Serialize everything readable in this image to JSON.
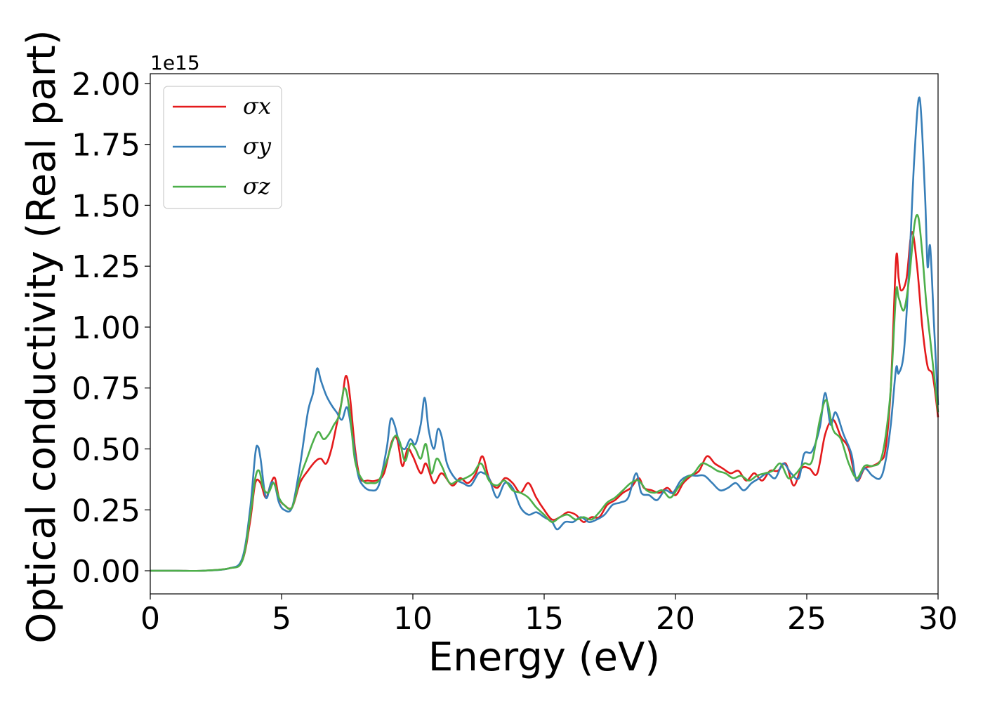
{
  "chart_data": {
    "type": "line",
    "xlabel": "Energy (eV)",
    "ylabel": "Optical conductivity (Real part)",
    "offset_text": "1e15",
    "xlim": [
      0,
      30
    ],
    "ylim": [
      -0.095,
      2.04
    ],
    "xticks": [
      "0",
      "5",
      "10",
      "15",
      "20",
      "25",
      "30"
    ],
    "yticks": [
      "0.00",
      "0.25",
      "0.50",
      "0.75",
      "1.00",
      "1.25",
      "1.50",
      "1.75",
      "2.00"
    ],
    "grid": false,
    "legend": {
      "position": "top-left"
    },
    "series": [
      {
        "name": "σx",
        "color": "#e41a1c",
        "x": [
          0,
          1,
          2,
          3,
          3.5,
          3.8,
          4.0,
          4.2,
          4.4,
          4.6,
          4.75,
          4.9,
          5.1,
          5.4,
          5.7,
          6.0,
          6.3,
          6.5,
          6.7,
          6.9,
          7.1,
          7.3,
          7.45,
          7.6,
          7.8,
          8.0,
          8.3,
          8.6,
          8.9,
          9.2,
          9.4,
          9.6,
          9.8,
          10.0,
          10.3,
          10.5,
          10.8,
          11.1,
          11.5,
          11.8,
          12.1,
          12.4,
          12.65,
          12.9,
          13.2,
          13.5,
          13.8,
          14.1,
          14.4,
          14.7,
          15.0,
          15.3,
          15.6,
          15.9,
          16.2,
          16.5,
          16.8,
          17.1,
          17.4,
          17.7,
          18.0,
          18.3,
          18.6,
          18.8,
          19.1,
          19.4,
          19.7,
          20.0,
          20.3,
          20.6,
          20.9,
          21.2,
          21.5,
          21.8,
          22.1,
          22.4,
          22.7,
          23.0,
          23.3,
          23.6,
          23.9,
          24.2,
          24.5,
          24.8,
          25.1,
          25.4,
          25.7,
          26.0,
          26.3,
          26.6,
          26.9,
          27.2,
          27.5,
          27.8,
          28.0,
          28.2,
          28.4,
          28.5,
          28.6,
          28.8,
          29.0,
          29.2,
          29.4,
          29.6,
          29.8,
          30.0
        ],
        "values": [
          0.0,
          0.0,
          0.0,
          0.01,
          0.04,
          0.2,
          0.36,
          0.36,
          0.3,
          0.36,
          0.38,
          0.3,
          0.27,
          0.26,
          0.36,
          0.41,
          0.45,
          0.46,
          0.44,
          0.5,
          0.6,
          0.7,
          0.8,
          0.72,
          0.5,
          0.38,
          0.37,
          0.37,
          0.4,
          0.53,
          0.54,
          0.43,
          0.5,
          0.47,
          0.4,
          0.44,
          0.36,
          0.4,
          0.35,
          0.38,
          0.36,
          0.4,
          0.47,
          0.38,
          0.34,
          0.38,
          0.36,
          0.32,
          0.36,
          0.3,
          0.25,
          0.21,
          0.22,
          0.24,
          0.23,
          0.2,
          0.22,
          0.22,
          0.27,
          0.29,
          0.32,
          0.34,
          0.38,
          0.34,
          0.33,
          0.32,
          0.34,
          0.31,
          0.36,
          0.39,
          0.41,
          0.47,
          0.44,
          0.42,
          0.4,
          0.41,
          0.37,
          0.4,
          0.37,
          0.41,
          0.41,
          0.44,
          0.35,
          0.42,
          0.42,
          0.4,
          0.56,
          0.62,
          0.55,
          0.5,
          0.37,
          0.42,
          0.43,
          0.45,
          0.5,
          0.75,
          1.28,
          1.2,
          1.15,
          1.2,
          1.39,
          1.25,
          1.0,
          0.84,
          0.8,
          0.63
        ]
      },
      {
        "name": "σy",
        "color": "#377eb8",
        "x": [
          0,
          1,
          2,
          3,
          3.5,
          3.8,
          4.0,
          4.1,
          4.2,
          4.4,
          4.6,
          4.75,
          4.9,
          5.1,
          5.4,
          5.7,
          6.0,
          6.2,
          6.35,
          6.5,
          6.7,
          6.9,
          7.1,
          7.3,
          7.5,
          7.7,
          7.9,
          8.1,
          8.4,
          8.7,
          9.0,
          9.15,
          9.3,
          9.5,
          9.7,
          9.9,
          10.1,
          10.3,
          10.45,
          10.6,
          10.8,
          10.95,
          11.1,
          11.3,
          11.6,
          11.9,
          12.2,
          12.5,
          12.7,
          12.9,
          13.2,
          13.5,
          13.8,
          14.1,
          14.4,
          14.7,
          15.0,
          15.3,
          15.5,
          15.8,
          16.1,
          16.4,
          16.7,
          17.0,
          17.3,
          17.6,
          17.9,
          18.2,
          18.5,
          18.7,
          19.0,
          19.3,
          19.6,
          19.9,
          20.2,
          20.5,
          20.8,
          21.1,
          21.4,
          21.7,
          22.0,
          22.3,
          22.6,
          22.9,
          23.2,
          23.5,
          23.8,
          24.1,
          24.4,
          24.7,
          24.9,
          25.2,
          25.5,
          25.7,
          25.9,
          26.1,
          26.4,
          26.7,
          26.9,
          27.2,
          27.5,
          27.8,
          28.0,
          28.2,
          28.4,
          28.5,
          28.7,
          28.9,
          29.1,
          29.3,
          29.5,
          29.6,
          29.7,
          29.85,
          30.0
        ],
        "values": [
          0.0,
          0.0,
          0.0,
          0.01,
          0.05,
          0.25,
          0.48,
          0.51,
          0.46,
          0.3,
          0.36,
          0.35,
          0.28,
          0.25,
          0.26,
          0.43,
          0.65,
          0.73,
          0.83,
          0.78,
          0.72,
          0.68,
          0.65,
          0.62,
          0.67,
          0.55,
          0.4,
          0.35,
          0.33,
          0.35,
          0.5,
          0.62,
          0.6,
          0.52,
          0.5,
          0.54,
          0.52,
          0.6,
          0.71,
          0.58,
          0.5,
          0.58,
          0.55,
          0.44,
          0.38,
          0.36,
          0.35,
          0.4,
          0.4,
          0.38,
          0.3,
          0.36,
          0.34,
          0.26,
          0.23,
          0.24,
          0.22,
          0.2,
          0.17,
          0.2,
          0.2,
          0.22,
          0.2,
          0.21,
          0.23,
          0.27,
          0.28,
          0.3,
          0.4,
          0.32,
          0.31,
          0.29,
          0.33,
          0.32,
          0.37,
          0.39,
          0.39,
          0.39,
          0.36,
          0.33,
          0.34,
          0.36,
          0.33,
          0.36,
          0.38,
          0.4,
          0.38,
          0.44,
          0.4,
          0.38,
          0.48,
          0.49,
          0.59,
          0.73,
          0.6,
          0.65,
          0.56,
          0.48,
          0.37,
          0.42,
          0.39,
          0.38,
          0.45,
          0.6,
          0.83,
          0.81,
          0.9,
          1.25,
          1.7,
          1.94,
          1.55,
          1.25,
          1.33,
          1.0,
          0.68
        ]
      },
      {
        "name": "σz",
        "color": "#4daf4a",
        "x": [
          0,
          1,
          2,
          3,
          3.5,
          3.8,
          4.0,
          4.15,
          4.3,
          4.5,
          4.7,
          4.9,
          5.1,
          5.4,
          5.7,
          6.0,
          6.2,
          6.4,
          6.6,
          6.8,
          7.0,
          7.2,
          7.4,
          7.6,
          7.8,
          8.1,
          8.4,
          8.7,
          9.0,
          9.3,
          9.5,
          9.7,
          9.9,
          10.1,
          10.3,
          10.5,
          10.7,
          10.9,
          11.1,
          11.4,
          11.7,
          12.0,
          12.3,
          12.6,
          12.9,
          13.2,
          13.5,
          13.8,
          14.1,
          14.4,
          14.7,
          15.0,
          15.3,
          15.6,
          15.9,
          16.2,
          16.5,
          16.8,
          17.1,
          17.4,
          17.7,
          18.0,
          18.3,
          18.6,
          18.9,
          19.2,
          19.5,
          19.8,
          20.1,
          20.4,
          20.7,
          21.0,
          21.3,
          21.6,
          21.9,
          22.2,
          22.5,
          22.8,
          23.1,
          23.4,
          23.7,
          24.0,
          24.3,
          24.6,
          24.9,
          25.2,
          25.5,
          25.75,
          26.0,
          26.3,
          26.6,
          26.9,
          27.2,
          27.5,
          27.8,
          28.0,
          28.2,
          28.4,
          28.5,
          28.7,
          28.9,
          29.1,
          29.25,
          29.4,
          29.55,
          29.7,
          29.85,
          30.0
        ],
        "values": [
          0.0,
          0.0,
          0.0,
          0.01,
          0.04,
          0.22,
          0.38,
          0.41,
          0.34,
          0.32,
          0.36,
          0.3,
          0.27,
          0.26,
          0.38,
          0.47,
          0.53,
          0.57,
          0.54,
          0.56,
          0.6,
          0.64,
          0.75,
          0.65,
          0.45,
          0.37,
          0.36,
          0.37,
          0.45,
          0.55,
          0.53,
          0.45,
          0.52,
          0.5,
          0.46,
          0.52,
          0.4,
          0.46,
          0.43,
          0.36,
          0.37,
          0.38,
          0.4,
          0.44,
          0.37,
          0.35,
          0.37,
          0.33,
          0.32,
          0.3,
          0.26,
          0.23,
          0.2,
          0.22,
          0.23,
          0.21,
          0.22,
          0.21,
          0.24,
          0.28,
          0.3,
          0.33,
          0.36,
          0.37,
          0.33,
          0.32,
          0.33,
          0.3,
          0.34,
          0.38,
          0.4,
          0.44,
          0.43,
          0.41,
          0.4,
          0.38,
          0.39,
          0.37,
          0.39,
          0.4,
          0.41,
          0.44,
          0.38,
          0.4,
          0.44,
          0.45,
          0.62,
          0.7,
          0.58,
          0.54,
          0.44,
          0.38,
          0.43,
          0.43,
          0.45,
          0.55,
          0.75,
          1.14,
          1.12,
          1.07,
          1.2,
          1.42,
          1.45,
          1.3,
          1.1,
          0.95,
          0.8,
          0.65
        ]
      }
    ]
  }
}
